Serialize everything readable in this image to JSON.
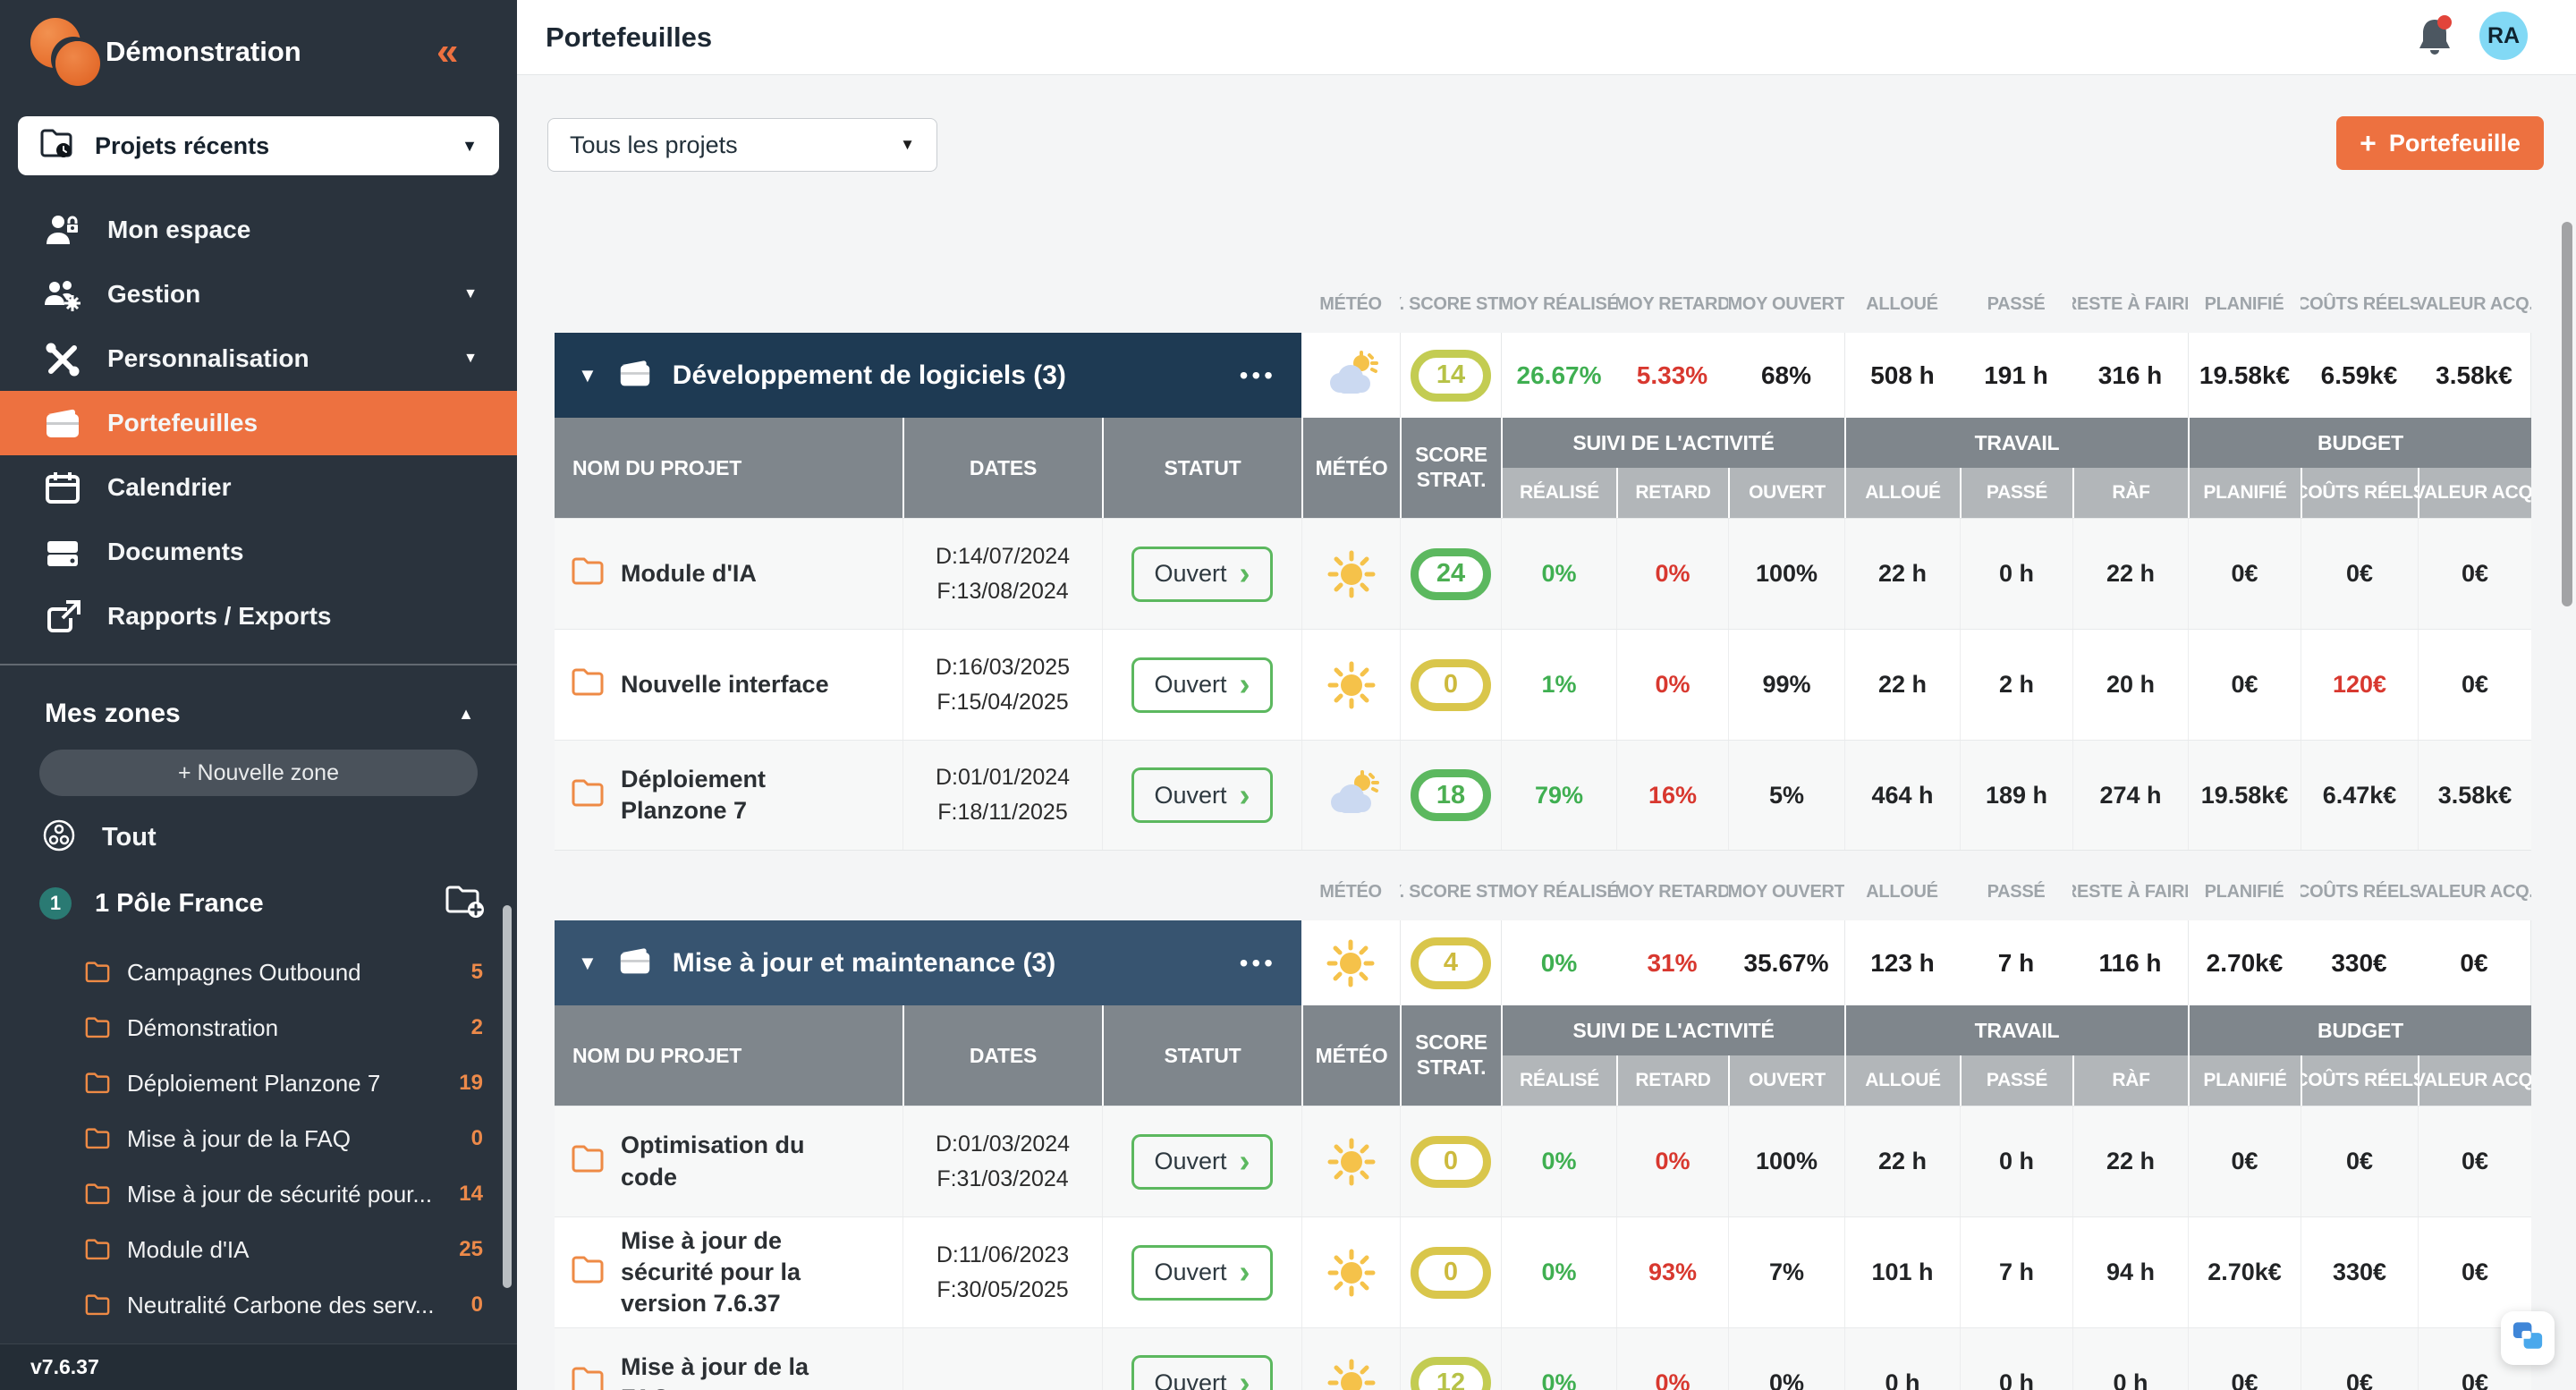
{
  "colors": {
    "accent_orange": "#ED7140",
    "sidebar_bg": "#2A333D",
    "green": "#3FAF51",
    "red": "#D8382F",
    "score_green": "#5CB85F",
    "score_yellow": "#D9C64B",
    "score_lime": "#C3CC52",
    "teal_badge": "#2A7A73",
    "avatar_bg": "#82D9F5"
  },
  "sidebar": {
    "workspace": "Démonstration",
    "recent_label": "Projets récents",
    "menu": [
      {
        "label": "Mon espace",
        "icon": "user-lock",
        "caret": false,
        "active": false
      },
      {
        "label": "Gestion",
        "icon": "users-gear",
        "caret": true,
        "active": false
      },
      {
        "label": "Personnalisation",
        "icon": "tools",
        "caret": true,
        "active": false
      },
      {
        "label": "Portefeuilles",
        "icon": "wallet",
        "caret": false,
        "active": true
      },
      {
        "label": "Calendrier",
        "icon": "calendar",
        "caret": false,
        "active": false
      },
      {
        "label": "Documents",
        "icon": "drive",
        "caret": false,
        "active": false
      },
      {
        "label": "Rapports / Exports",
        "icon": "export",
        "caret": false,
        "active": false
      }
    ],
    "zones_title": "Mes zones",
    "new_zone_label": "+ Nouvelle zone",
    "all_label": "Tout",
    "pole": {
      "badge": "1",
      "label": "1 Pôle France"
    },
    "folders": [
      {
        "label": "Campagnes Outbound",
        "count": "5"
      },
      {
        "label": "Démonstration",
        "count": "2"
      },
      {
        "label": "Déploiement Planzone 7",
        "count": "19"
      },
      {
        "label": "Mise à jour de la FAQ",
        "count": "0"
      },
      {
        "label": "Mise à jour de sécurité pour...",
        "count": "14"
      },
      {
        "label": "Module d'IA",
        "count": "25"
      },
      {
        "label": "Neutralité Carbone des serv...",
        "count": "0"
      }
    ],
    "version": "v7.6.37"
  },
  "topbar": {
    "title": "Portefeuilles",
    "avatar": "RA"
  },
  "controls": {
    "filter_value": "Tous les projets",
    "add_plus": "+",
    "add_label": "Portefeuille"
  },
  "overview_columns": [
    "MÉTÉO",
    "Y. SCORE STR",
    "MOY RÉALISÉ",
    "MOY RETARD",
    "MOY OUVERT",
    "ALLOUÉ",
    "PASSÉ",
    "RESTE À FAIRE",
    "PLANIFIÉ",
    "COÛTS RÉELS",
    "VALEUR ACQ."
  ],
  "table_header": {
    "nom": "NOM DU PROJET",
    "dates": "DATES",
    "statut": "STATUT",
    "meteo": "MÉTÉO",
    "score": "SCORE STRAT.",
    "activite": "SUIVI DE L'ACTIVITÉ",
    "travail": "TRAVAIL",
    "budget": "BUDGET",
    "realise": "RÉALISÉ",
    "retard": "RETARD",
    "ouvert": "OUVERT",
    "alloue": "ALLOUÉ",
    "passe": "PASSÉ",
    "raf": "RÀF",
    "planifie": "PLANIFIÉ",
    "couts": "COÛTS RÉELS",
    "valeur": "VALEUR ACQ."
  },
  "portfolios": [
    {
      "name": "Développement de logiciels (3)",
      "header_color": "#1E3A53",
      "weather": "cloud-sun",
      "score": "14",
      "score_color": "sc-lime",
      "realise": "26.67%",
      "retard": "5.33%",
      "ouvert": "68%",
      "alloue": "508 h",
      "passe": "191 h",
      "raf": "316 h",
      "planifie": "19.58k€",
      "couts": "6.59k€",
      "valeur": "3.58k€",
      "rows": [
        {
          "name": "Module d'IA",
          "date_d": "D:14/07/2024",
          "date_f": "F:13/08/2024",
          "statut": "Ouvert",
          "weather": "sun",
          "score": "24",
          "score_color": "sc-green",
          "realise": "0%",
          "retard": "0%",
          "ouvert": "100%",
          "alloue": "22 h",
          "passe": "0 h",
          "raf": "22 h",
          "planifie": "0€",
          "couts": "0€",
          "valeur": "0€"
        },
        {
          "name": "Nouvelle interface",
          "date_d": "D:16/03/2025",
          "date_f": "F:15/04/2025",
          "statut": "Ouvert",
          "weather": "sun",
          "score": "0",
          "score_color": "sc-yellow",
          "realise": "1%",
          "retard": "0%",
          "ouvert": "99%",
          "alloue": "22 h",
          "passe": "2 h",
          "raf": "20 h",
          "planifie": "0€",
          "couts": "120€",
          "couts_color": "red",
          "valeur": "0€"
        },
        {
          "name": "Déploiement Planzone 7",
          "date_d": "D:01/01/2024",
          "date_f": "F:18/11/2025",
          "statut": "Ouvert",
          "weather": "cloud-sun",
          "score": "18",
          "score_color": "sc-green",
          "realise": "79%",
          "retard": "16%",
          "ouvert": "5%",
          "alloue": "464 h",
          "passe": "189 h",
          "raf": "274 h",
          "planifie": "19.58k€",
          "couts": "6.47k€",
          "valeur": "3.58k€"
        }
      ]
    },
    {
      "name": "Mise à jour et maintenance (3)",
      "header_color": "#375470",
      "weather": "sun",
      "score": "4",
      "score_color": "sc-yellow",
      "realise": "0%",
      "retard": "31%",
      "ouvert": "35.67%",
      "alloue": "123 h",
      "passe": "7 h",
      "raf": "116 h",
      "planifie": "2.70k€",
      "couts": "330€",
      "valeur": "0€",
      "rows": [
        {
          "name": "Optimisation du code",
          "date_d": "D:01/03/2024",
          "date_f": "F:31/03/2024",
          "statut": "Ouvert",
          "weather": "sun",
          "score": "0",
          "score_color": "sc-yellow",
          "realise": "0%",
          "retard": "0%",
          "ouvert": "100%",
          "alloue": "22 h",
          "passe": "0 h",
          "raf": "22 h",
          "planifie": "0€",
          "couts": "0€",
          "valeur": "0€"
        },
        {
          "name": "Mise à jour de sécurité pour la version 7.6.37",
          "date_d": "D:11/06/2023",
          "date_f": "F:30/05/2025",
          "statut": "Ouvert",
          "weather": "sun",
          "score": "0",
          "score_color": "sc-yellow",
          "realise": "0%",
          "retard": "93%",
          "ouvert": "7%",
          "alloue": "101 h",
          "passe": "7 h",
          "raf": "94 h",
          "planifie": "2.70k€",
          "couts": "330€",
          "valeur": "0€"
        },
        {
          "name": "Mise à jour de la FAQ",
          "date_d": "",
          "date_f": "",
          "statut": "Ouvert",
          "weather": "sun",
          "score": "12",
          "score_color": "sc-lime",
          "realise": "0%",
          "retard": "0%",
          "ouvert": "0%",
          "alloue": "0 h",
          "passe": "0 h",
          "raf": "0 h",
          "planifie": "0€",
          "couts": "0€",
          "valeur": "0€"
        }
      ]
    }
  ]
}
